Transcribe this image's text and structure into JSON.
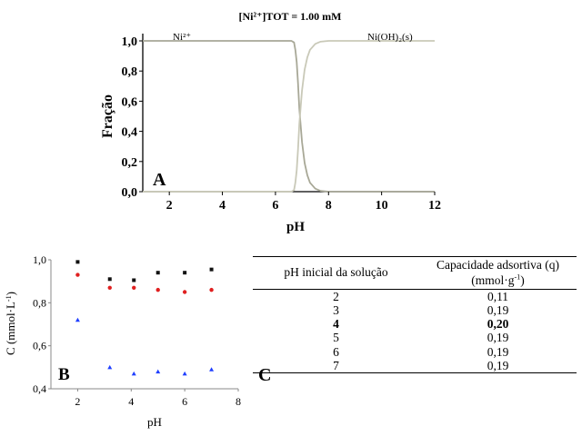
{
  "colors": {
    "axis": "#000000",
    "line_ni2": "#a8a897",
    "line_niOH2": "#c9c9b8",
    "series_black": "#111111",
    "series_red": "#e02020",
    "series_blue": "#1f3fff"
  },
  "panels": {
    "a": "A",
    "b": "B",
    "c": "C"
  },
  "chart_data": [
    {
      "type": "line",
      "title": "[Ni²⁺]TOT =    1.00 mM",
      "xlabel": "pH",
      "ylabel": "Fração",
      "xlim": [
        1,
        12
      ],
      "ylim": [
        0,
        1
      ],
      "xticks": [
        "2",
        "4",
        "6",
        "8",
        "10",
        "12"
      ],
      "yticks": [
        "0,0",
        "0,2",
        "0,4",
        "0,6",
        "0,8",
        "1,0"
      ],
      "grid": false,
      "series": [
        {
          "name": "Ni²⁺",
          "x": [
            1,
            6.6,
            6.7,
            6.75,
            6.8,
            6.85,
            6.9,
            7.0,
            7.1,
            7.2,
            7.3,
            7.5,
            7.7,
            8.0,
            12
          ],
          "y": [
            1.0,
            1.0,
            0.99,
            0.94,
            0.86,
            0.72,
            0.55,
            0.33,
            0.19,
            0.11,
            0.06,
            0.02,
            0.005,
            0.0,
            0.0
          ]
        },
        {
          "name": "Ni(OH)₂(s)",
          "x": [
            1,
            6.6,
            6.7,
            6.75,
            6.8,
            6.85,
            6.9,
            7.0,
            7.1,
            7.2,
            7.3,
            7.5,
            7.7,
            8.0,
            12
          ],
          "y": [
            0.0,
            0.0,
            0.01,
            0.06,
            0.14,
            0.28,
            0.45,
            0.67,
            0.81,
            0.89,
            0.94,
            0.98,
            0.995,
            1.0,
            1.0
          ]
        }
      ]
    },
    {
      "type": "scatter",
      "xlabel": "pH",
      "ylabel": "C (mmol·L-1)",
      "ylabel_main": "C (mmol·L",
      "ylabel_sup": "-1",
      "ylabel_end": ")",
      "xlim": [
        1,
        8
      ],
      "ylim": [
        0.4,
        1.0
      ],
      "xticks": [
        "2",
        "4",
        "6",
        "8"
      ],
      "yticks": [
        "0,4",
        "0,6",
        "0,8",
        "1,0"
      ],
      "grid": false,
      "series": [
        {
          "marker": "square",
          "x": [
            2,
            3.2,
            4.1,
            5,
            6,
            7
          ],
          "y": [
            0.99,
            0.91,
            0.905,
            0.94,
            0.94,
            0.955
          ]
        },
        {
          "marker": "circle",
          "x": [
            2,
            3.2,
            4.1,
            5,
            6,
            7
          ],
          "y": [
            0.93,
            0.87,
            0.87,
            0.86,
            0.85,
            0.86
          ]
        },
        {
          "marker": "triangle",
          "x": [
            2,
            3.2,
            4.1,
            5,
            6,
            7
          ],
          "y": [
            0.72,
            0.5,
            0.47,
            0.48,
            0.47,
            0.49
          ]
        }
      ]
    },
    {
      "type": "table",
      "headers": [
        "pH inicial da solução",
        "Capacidade adsortiva (q)"
      ],
      "header_unit": "(mmol·g-1)",
      "unit_main": "(mmol·g",
      "unit_sup": "-1",
      "unit_end": ")",
      "rows": [
        [
          "2",
          "0,11"
        ],
        [
          "3",
          "0,19"
        ],
        [
          "4",
          "0,20"
        ],
        [
          "5",
          "0,19"
        ],
        [
          "6",
          "0,19"
        ],
        [
          "7",
          "0,19"
        ]
      ],
      "bold_row": 2
    }
  ]
}
